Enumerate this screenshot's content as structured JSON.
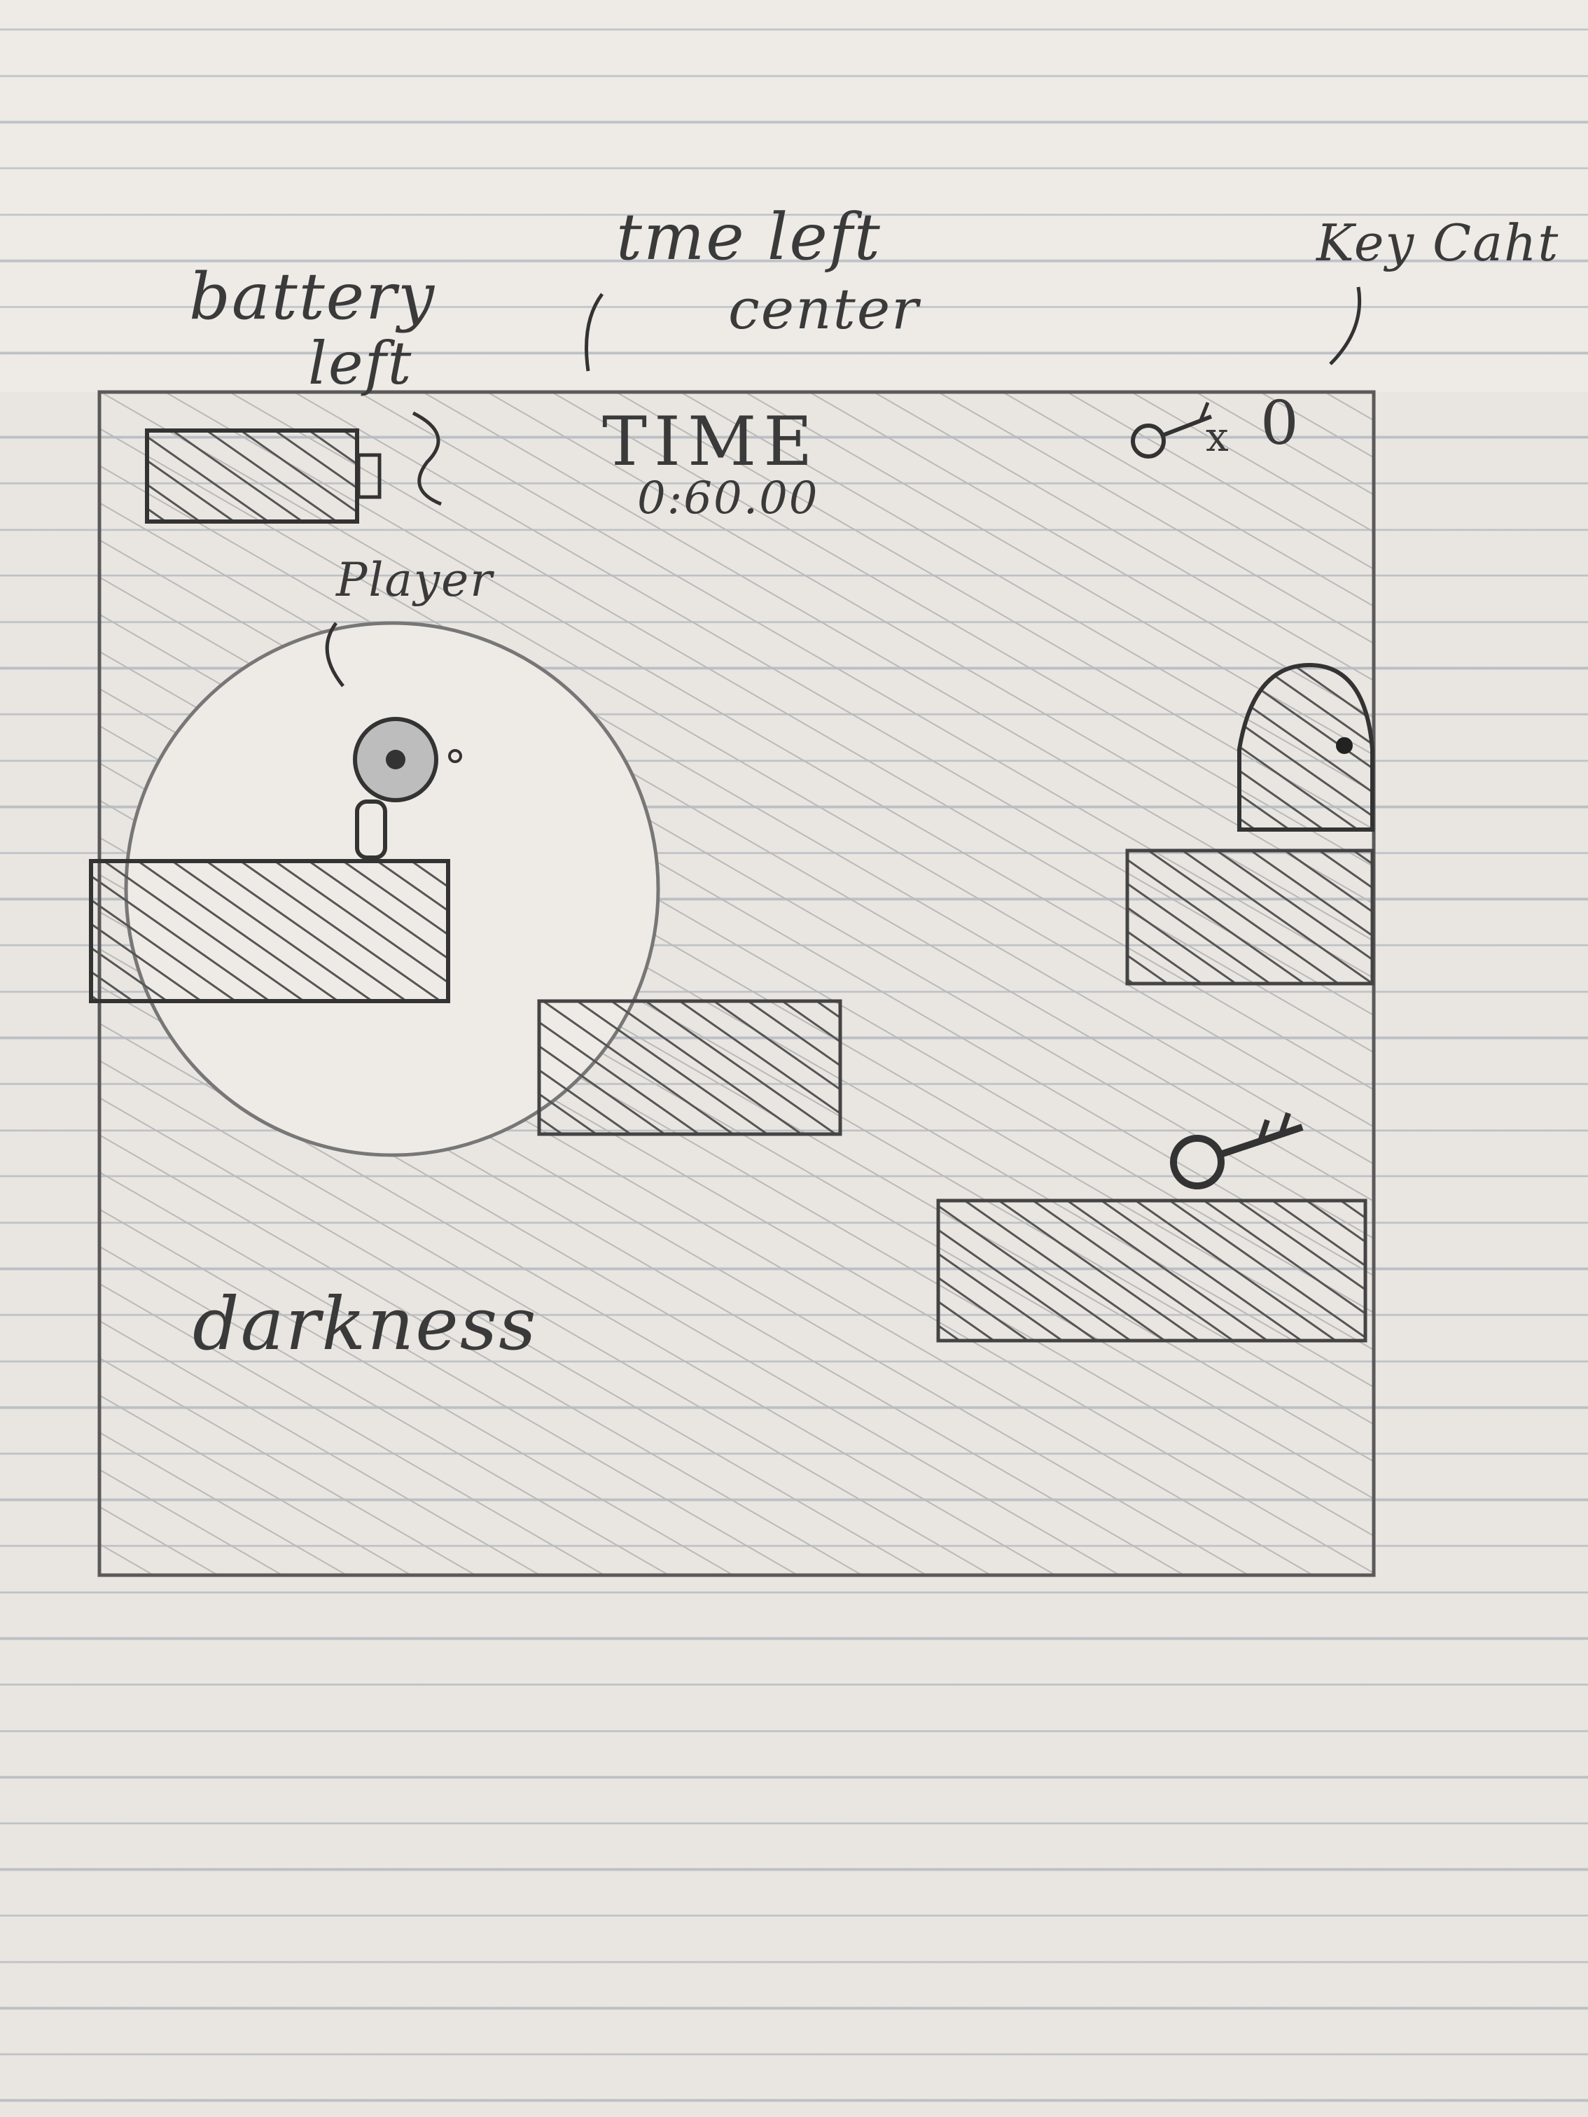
{
  "annotations": {
    "battery_line1": "battery",
    "battery_line2": "left",
    "time_line1": "tme left",
    "time_line2": "center",
    "key_count": "Key Caht",
    "player": "Player",
    "darkness": "darkness"
  },
  "hud": {
    "time_title": "TIME",
    "time_value": "0:60.00",
    "key_multiplier": "x",
    "key_count_value": "0"
  },
  "colors": {
    "pencil": "#3a3a3a",
    "light_pencil": "#9a9a9a",
    "paper": "#eeebe6"
  }
}
